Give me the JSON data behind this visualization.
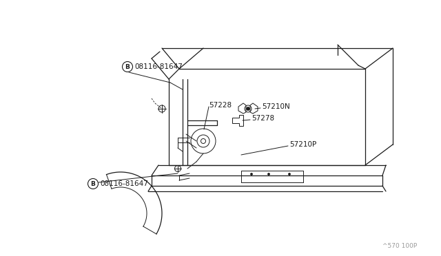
{
  "bg_color": "#ffffff",
  "line_color": "#1a1a1a",
  "label_color": "#1a1a1a",
  "fig_width": 6.4,
  "fig_height": 3.72,
  "dpi": 100,
  "watermark": "^570 100P",
  "labels": {
    "bolt_top": "08116-81647",
    "bolt_bot": "08116-81647",
    "part_57228": "57228",
    "part_57210N": "57210N",
    "part_57278": "57278",
    "part_57210P": "57210P"
  }
}
